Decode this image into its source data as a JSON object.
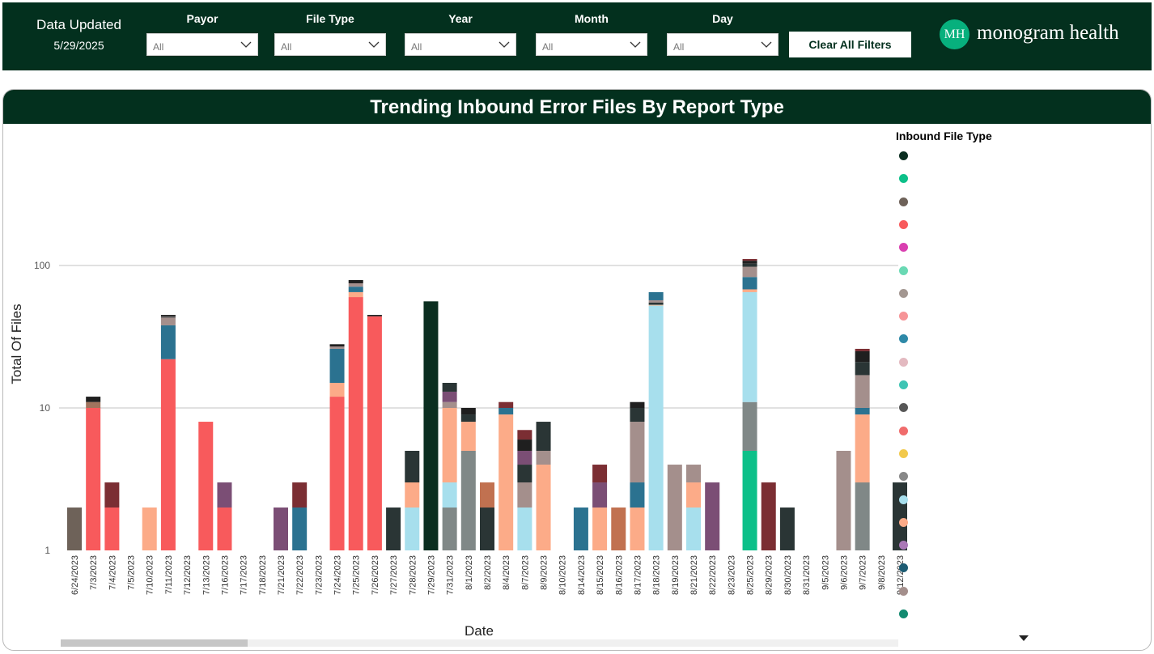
{
  "header": {
    "updated_label": "Data Updated",
    "updated_date": "5/29/2025",
    "filters": [
      {
        "label": "Payor",
        "value": "All"
      },
      {
        "label": "File Type",
        "value": "All"
      },
      {
        "label": "Year",
        "value": "All"
      },
      {
        "label": "Month",
        "value": "All"
      },
      {
        "label": "Day",
        "value": "All"
      }
    ],
    "clear_label": "Clear All Filters",
    "logo_mark": "MH",
    "logo_text": "monogram health"
  },
  "chart_title": "Trending Inbound Error Files By Report Type",
  "legend_title": "Inbound File Type",
  "chart_data": {
    "type": "bar",
    "stacked": true,
    "y_scale": "log",
    "title": "Trending Inbound Error Files By Report Type",
    "xlabel": "Date",
    "ylabel": "Total Of Files",
    "ylim": [
      1,
      200
    ],
    "yticks": [
      1,
      10,
      100
    ],
    "grid": true,
    "legend_position": "right",
    "legend_colors": [
      "#0b2e20",
      "#0cc089",
      "#6e6259",
      "#f85a5c",
      "#d93fb0",
      "#6ad9b4",
      "#a39791",
      "#f69497",
      "#2e89a8",
      "#e3b9c0",
      "#3ec4b4",
      "#575757",
      "#f06c6c",
      "#f2c94c",
      "#888888",
      "#a7dfed",
      "#fcab88",
      "#aa78b7",
      "#1d5c73",
      "#a48f8c",
      "#138a70"
    ],
    "categories": [
      "6/24/2023",
      "7/3/2023",
      "7/4/2023",
      "7/5/2023",
      "7/10/2023",
      "7/11/2023",
      "7/12/2023",
      "7/13/2023",
      "7/16/2023",
      "7/17/2023",
      "7/18/2023",
      "7/21/2023",
      "7/22/2023",
      "7/23/2023",
      "7/24/2023",
      "7/25/2023",
      "7/26/2023",
      "7/27/2023",
      "7/28/2023",
      "7/29/2023",
      "7/31/2023",
      "8/1/2023",
      "8/2/2023",
      "8/4/2023",
      "8/7/2023",
      "8/9/2023",
      "8/10/2023",
      "8/14/2023",
      "8/15/2023",
      "8/16/2023",
      "8/17/2023",
      "8/18/2023",
      "8/19/2023",
      "8/21/2023",
      "8/22/2023",
      "8/23/2023",
      "8/25/2023",
      "8/29/2023",
      "8/30/2023",
      "8/31/2023",
      "9/5/2023",
      "9/6/2023",
      "9/7/2023",
      "9/8/2023",
      "9/12/2023"
    ],
    "stacks": [
      [
        {
          "color": "#6e6259",
          "value": 2
        }
      ],
      [
        {
          "color": "#f85a5c",
          "value": 10
        },
        {
          "color": "#a0745e",
          "value": 1
        },
        {
          "color": "#1f1f1f",
          "value": 1
        }
      ],
      [
        {
          "color": "#f85a5c",
          "value": 2
        },
        {
          "color": "#7b2e33",
          "value": 1
        }
      ],
      [],
      [
        {
          "color": "#fcab88",
          "value": 2
        }
      ],
      [
        {
          "color": "#f85a5c",
          "value": 22
        },
        {
          "color": "#2b7290",
          "value": 16
        },
        {
          "color": "#a48f8c",
          "value": 5
        },
        {
          "color": "#5d5d5d",
          "value": 1
        },
        {
          "color": "#1f1f1f",
          "value": 1
        }
      ],
      [],
      [
        {
          "color": "#f85a5c",
          "value": 8
        }
      ],
      [
        {
          "color": "#f85a5c",
          "value": 2
        },
        {
          "color": "#7b4e75",
          "value": 1
        }
      ],
      [],
      [],
      [
        {
          "color": "#7b4e75",
          "value": 2
        }
      ],
      [
        {
          "color": "#2b7290",
          "value": 2
        },
        {
          "color": "#7b2e33",
          "value": 1
        }
      ],
      [],
      [
        {
          "color": "#f85a5c",
          "value": 12
        },
        {
          "color": "#fcab88",
          "value": 3
        },
        {
          "color": "#2b7290",
          "value": 11
        },
        {
          "color": "#a48f8c",
          "value": 1
        },
        {
          "color": "#1f1f1f",
          "value": 1
        }
      ],
      [
        {
          "color": "#f85a5c",
          "value": 60
        },
        {
          "color": "#fcab88",
          "value": 5
        },
        {
          "color": "#2b7290",
          "value": 6
        },
        {
          "color": "#a48f8c",
          "value": 4
        },
        {
          "color": "#1f1f1f",
          "value": 4
        }
      ],
      [
        {
          "color": "#f85a5c",
          "value": 44
        },
        {
          "color": "#1f1f1f",
          "value": 1
        }
      ],
      [
        {
          "color": "#2a3535",
          "value": 2
        }
      ],
      [
        {
          "color": "#a7dfed",
          "value": 2
        },
        {
          "color": "#fcab88",
          "value": 1
        },
        {
          "color": "#2a3535",
          "value": 2
        }
      ],
      [
        {
          "color": "#0b2e20",
          "value": 56
        }
      ],
      [
        {
          "color": "#808887",
          "value": 2
        },
        {
          "color": "#a7dfed",
          "value": 1
        },
        {
          "color": "#fcab88",
          "value": 7
        },
        {
          "color": "#a48f8c",
          "value": 1
        },
        {
          "color": "#7b4e75",
          "value": 2
        },
        {
          "color": "#2a3535",
          "value": 2
        }
      ],
      [
        {
          "color": "#808887",
          "value": 5
        },
        {
          "color": "#fcab88",
          "value": 3
        },
        {
          "color": "#2a3535",
          "value": 1
        },
        {
          "color": "#1f1f1f",
          "value": 1
        }
      ],
      [
        {
          "color": "#2a3535",
          "value": 2
        },
        {
          "color": "#c17150",
          "value": 1
        }
      ],
      [
        {
          "color": "#fcab88",
          "value": 9
        },
        {
          "color": "#2b7290",
          "value": 1
        },
        {
          "color": "#7b2e33",
          "value": 1
        }
      ],
      [
        {
          "color": "#a7dfed",
          "value": 2
        },
        {
          "color": "#a48f8c",
          "value": 1
        },
        {
          "color": "#2a3535",
          "value": 1
        },
        {
          "color": "#7b4e75",
          "value": 1
        },
        {
          "color": "#1f1f1f",
          "value": 1
        },
        {
          "color": "#7b2e33",
          "value": 1
        }
      ],
      [
        {
          "color": "#fcab88",
          "value": 4
        },
        {
          "color": "#a48f8c",
          "value": 1
        },
        {
          "color": "#2a3535",
          "value": 3
        }
      ],
      [],
      [
        {
          "color": "#2b7290",
          "value": 2
        }
      ],
      [
        {
          "color": "#fcab88",
          "value": 2
        },
        {
          "color": "#7b4e75",
          "value": 1
        },
        {
          "color": "#7b2e33",
          "value": 1
        }
      ],
      [
        {
          "color": "#c17150",
          "value": 2
        }
      ],
      [
        {
          "color": "#fcab88",
          "value": 2
        },
        {
          "color": "#2b7290",
          "value": 1
        },
        {
          "color": "#a48f8c",
          "value": 5
        },
        {
          "color": "#2a3535",
          "value": 2
        },
        {
          "color": "#1f1f1f",
          "value": 1
        }
      ],
      [
        {
          "color": "#a7dfed",
          "value": 52
        },
        {
          "color": "#d6c9b7",
          "value": 1
        },
        {
          "color": "#2a3535",
          "value": 2
        },
        {
          "color": "#a48f8c",
          "value": 2
        },
        {
          "color": "#2b7290",
          "value": 8
        }
      ],
      [
        {
          "color": "#a48f8c",
          "value": 4
        }
      ],
      [
        {
          "color": "#a7dfed",
          "value": 2
        },
        {
          "color": "#fcab88",
          "value": 1
        },
        {
          "color": "#a48f8c",
          "value": 1
        }
      ],
      [
        {
          "color": "#7b4e75",
          "value": 3
        }
      ],
      [],
      [
        {
          "color": "#0cc089",
          "value": 5
        },
        {
          "color": "#808887",
          "value": 6
        },
        {
          "color": "#a7dfed",
          "value": 54
        },
        {
          "color": "#fcab88",
          "value": 3
        },
        {
          "color": "#2b7290",
          "value": 15
        },
        {
          "color": "#a48f8c",
          "value": 15
        },
        {
          "color": "#2a3535",
          "value": 5
        },
        {
          "color": "#1f1f1f",
          "value": 5
        },
        {
          "color": "#7b2e33",
          "value": 3
        }
      ],
      [
        {
          "color": "#7b2e33",
          "value": 3
        }
      ],
      [
        {
          "color": "#2a3535",
          "value": 2
        }
      ],
      [],
      [],
      [
        {
          "color": "#a48f8c",
          "value": 5
        }
      ],
      [
        {
          "color": "#808887",
          "value": 3
        },
        {
          "color": "#fcab88",
          "value": 6
        },
        {
          "color": "#2b7290",
          "value": 1
        },
        {
          "color": "#a48f8c",
          "value": 7
        },
        {
          "color": "#2a3535",
          "value": 4
        },
        {
          "color": "#1f1f1f",
          "value": 4
        },
        {
          "color": "#7b2e33",
          "value": 1
        }
      ],
      [],
      [
        {
          "color": "#2a3535",
          "value": 3
        }
      ]
    ]
  }
}
